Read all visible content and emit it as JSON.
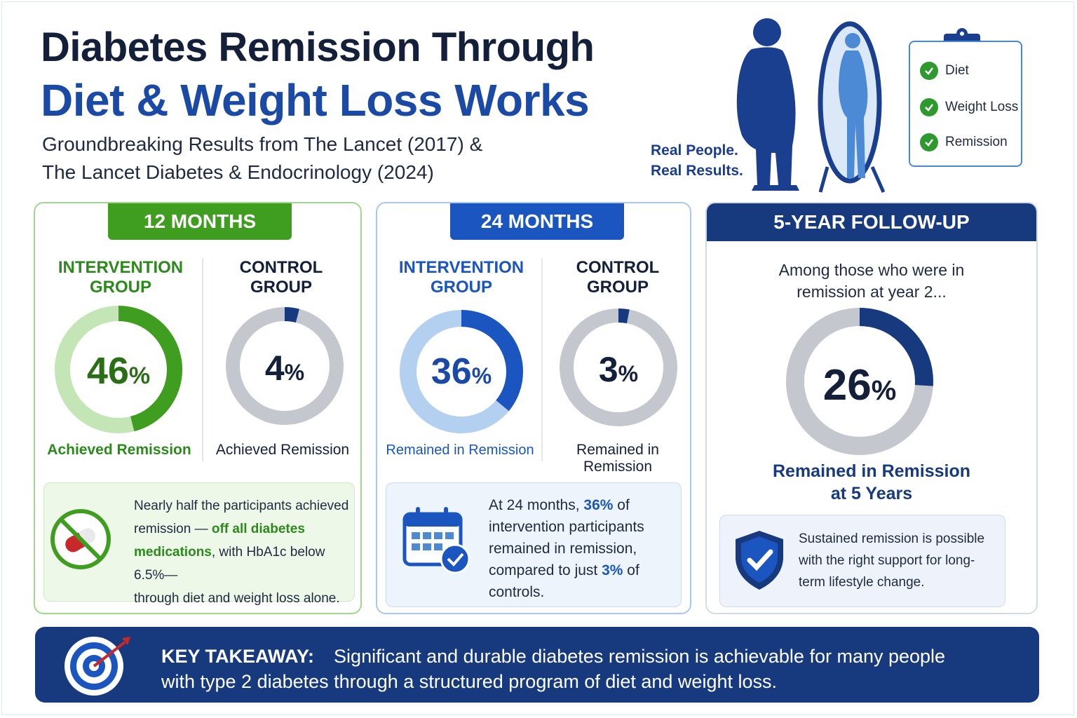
{
  "header": {
    "title_line1": "Diabetes Remission Through",
    "title_line2": "Diet & Weight Loss Works",
    "subtitle_line1": "Groundbreaking Results from The Lancet (2017) &",
    "subtitle_line2": "The Lancet Diabetes & Endocrinology (2024)",
    "tagline_line1": "Real People.",
    "tagline_line2": "Real Results."
  },
  "checklist": {
    "items": [
      "Diet",
      "Weight Loss",
      "Remission"
    ]
  },
  "panels": {
    "p12": {
      "tab": "12 MONTHS",
      "intervention": {
        "label_line1": "INTERVENTION",
        "label_line2": "GROUP",
        "pct": 46,
        "pct_text": "46",
        "caption": "Achieved Remission"
      },
      "control": {
        "label_line1": "CONTROL",
        "label_line2": "GROUP",
        "pct": 4,
        "pct_text": "4",
        "caption": "Achieved Remission"
      },
      "note": {
        "l1": "Nearly half the participants achieved",
        "l2a": "remission — ",
        "l2b": "off all diabetes",
        "l3a": "medications",
        "l3b": ", with HbA1c below 6.5%—",
        "l4": "through diet and weight loss alone."
      }
    },
    "p24": {
      "tab": "24 MONTHS",
      "intervention": {
        "label_line1": "INTERVENTION",
        "label_line2": "GROUP",
        "pct": 36,
        "pct_text": "36",
        "caption": "Remained in Remission"
      },
      "control": {
        "label_line1": "CONTROL",
        "label_line2": "GROUP",
        "pct": 3,
        "pct_text": "3",
        "caption_line1": "Remained in",
        "caption_line2": "Remission"
      },
      "note": {
        "l1a": "At 24 months, ",
        "l1b": "36%",
        "l1c": " of",
        "l2": "intervention participants",
        "l3": "remained in remission,",
        "l4a": "compared to just ",
        "l4b": "3%",
        "l4c": " of",
        "l5": "controls."
      }
    },
    "p5y": {
      "tab": "5-YEAR FOLLOW-UP",
      "intro_line1": "Among those who were in",
      "intro_line2": "remission at year 2...",
      "pct": 26,
      "pct_text": "26",
      "caption_line1": "Remained in Remission",
      "caption_line2": "at 5 Years",
      "note_l1": "Sustained remission is possible",
      "note_l2": "with the right support for long-",
      "note_l3": "term lifestyle change."
    }
  },
  "takeaway": {
    "label": "KEY TAKEAWAY:",
    "line1": "Significant and durable diabetes remission is achievable for many people",
    "line2": "with type 2 diabetes through a structured program of diet and weight loss."
  },
  "percent_sign": "%",
  "colors": {
    "green": "#3f9d1f",
    "blue": "#1b55c0",
    "navy": "#173a7e",
    "grey": "#c4c8ce"
  },
  "icons": [
    "person-silhouette-icon",
    "mirror-icon",
    "clipboard-icon",
    "check-icon",
    "no-pills-icon",
    "calendar-check-icon",
    "shield-check-icon",
    "target-icon"
  ]
}
